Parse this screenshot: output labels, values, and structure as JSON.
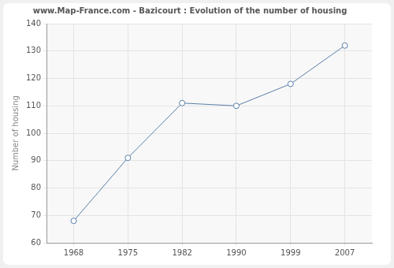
{
  "chart_data": {
    "type": "line",
    "title": "www.Map-France.com - Bazicourt : Evolution of the number of housing",
    "y_label": "Number of housing",
    "categories": [
      "1968",
      "1975",
      "1982",
      "1990",
      "1999",
      "2007"
    ],
    "values": [
      68,
      91,
      111,
      110,
      118,
      132
    ],
    "color": "#5a7fa8",
    "marker": "circle",
    "ylim": [
      60,
      140
    ],
    "yticks": [
      60,
      70,
      80,
      90,
      100,
      110,
      120,
      130,
      140
    ],
    "grid": true
  }
}
